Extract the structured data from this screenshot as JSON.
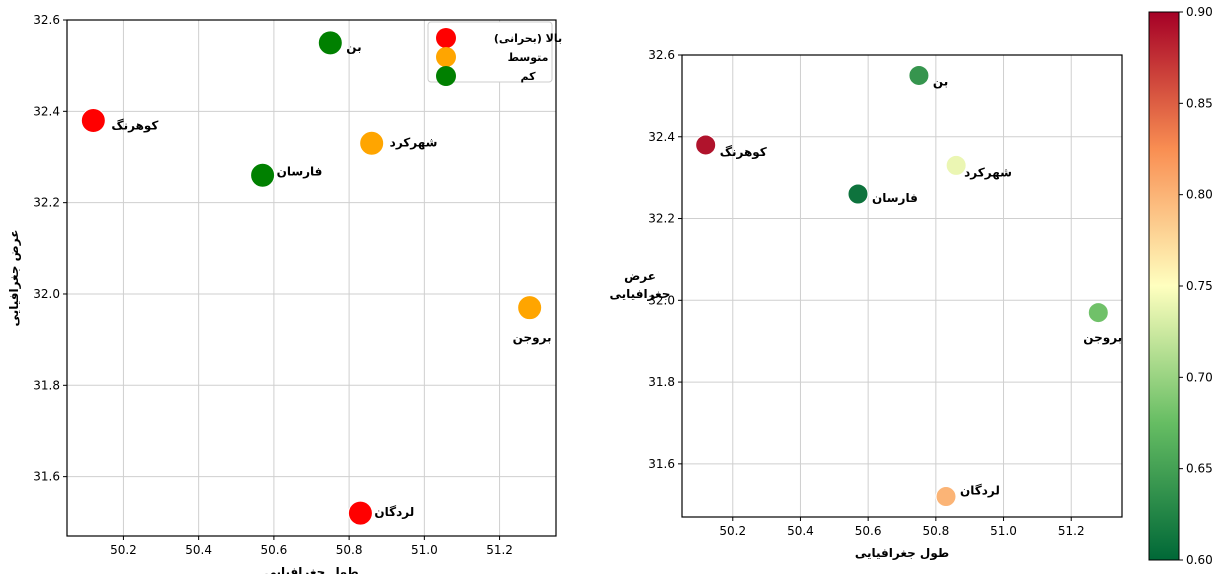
{
  "chart_data": [
    {
      "type": "scatter",
      "xlabel": "طول جغرافیایی",
      "ylabel": "عرض جغرافیایی",
      "xlim": [
        50.05,
        51.35
      ],
      "ylim": [
        31.47,
        32.6
      ],
      "xticks": [
        50.2,
        50.4,
        50.6,
        50.8,
        51.0,
        51.2
      ],
      "yticks": [
        31.6,
        31.8,
        32.0,
        32.2,
        32.4,
        32.6
      ],
      "grid": true,
      "legend": {
        "placement": "top-right",
        "entries": [
          {
            "label": "بالا (بحرانی)",
            "color": "#ff0000"
          },
          {
            "label": "متوسط",
            "color": "#ffa500"
          },
          {
            "label": "کم",
            "color": "#008000"
          }
        ]
      },
      "points": [
        {
          "label": "کوهرنگ",
          "x": 50.12,
          "y": 32.38,
          "level": "high"
        },
        {
          "label": "فارسان",
          "x": 50.57,
          "y": 32.26,
          "level": "low"
        },
        {
          "label": "بن",
          "x": 50.75,
          "y": 32.55,
          "level": "low"
        },
        {
          "label": "شهرکرد",
          "x": 50.86,
          "y": 32.33,
          "level": "medium"
        },
        {
          "label": "بروجن",
          "x": 51.28,
          "y": 31.97,
          "level": "medium"
        },
        {
          "label": "لردگان",
          "x": 50.83,
          "y": 31.52,
          "level": "high"
        }
      ]
    },
    {
      "type": "scatter",
      "xlabel": "طول جغرافیایی",
      "ylabel": "عرض جغرافیایی",
      "xlim": [
        50.05,
        51.35
      ],
      "ylim": [
        31.47,
        32.6
      ],
      "xticks": [
        50.2,
        50.4,
        50.6,
        50.8,
        51.0,
        51.2
      ],
      "yticks": [
        31.6,
        31.8,
        32.0,
        32.2,
        32.4,
        32.6
      ],
      "grid": true,
      "colormap": "RdYlGn_r",
      "colorbar": {
        "range": [
          0.6,
          0.9
        ],
        "ticks": [
          0.6,
          0.65,
          0.7,
          0.75,
          0.8,
          0.85,
          0.9
        ]
      },
      "points": [
        {
          "label": "کوهرنگ",
          "x": 50.12,
          "y": 32.38,
          "value": 0.89
        },
        {
          "label": "فارسان",
          "x": 50.57,
          "y": 32.26,
          "value": 0.61
        },
        {
          "label": "بن",
          "x": 50.75,
          "y": 32.55,
          "value": 0.64
        },
        {
          "label": "شهرکرد",
          "x": 50.86,
          "y": 32.33,
          "value": 0.74
        },
        {
          "label": "بروجن",
          "x": 51.28,
          "y": 31.97,
          "value": 0.68
        },
        {
          "label": "لردگان",
          "x": 50.83,
          "y": 31.52,
          "value": 0.8
        }
      ]
    }
  ]
}
